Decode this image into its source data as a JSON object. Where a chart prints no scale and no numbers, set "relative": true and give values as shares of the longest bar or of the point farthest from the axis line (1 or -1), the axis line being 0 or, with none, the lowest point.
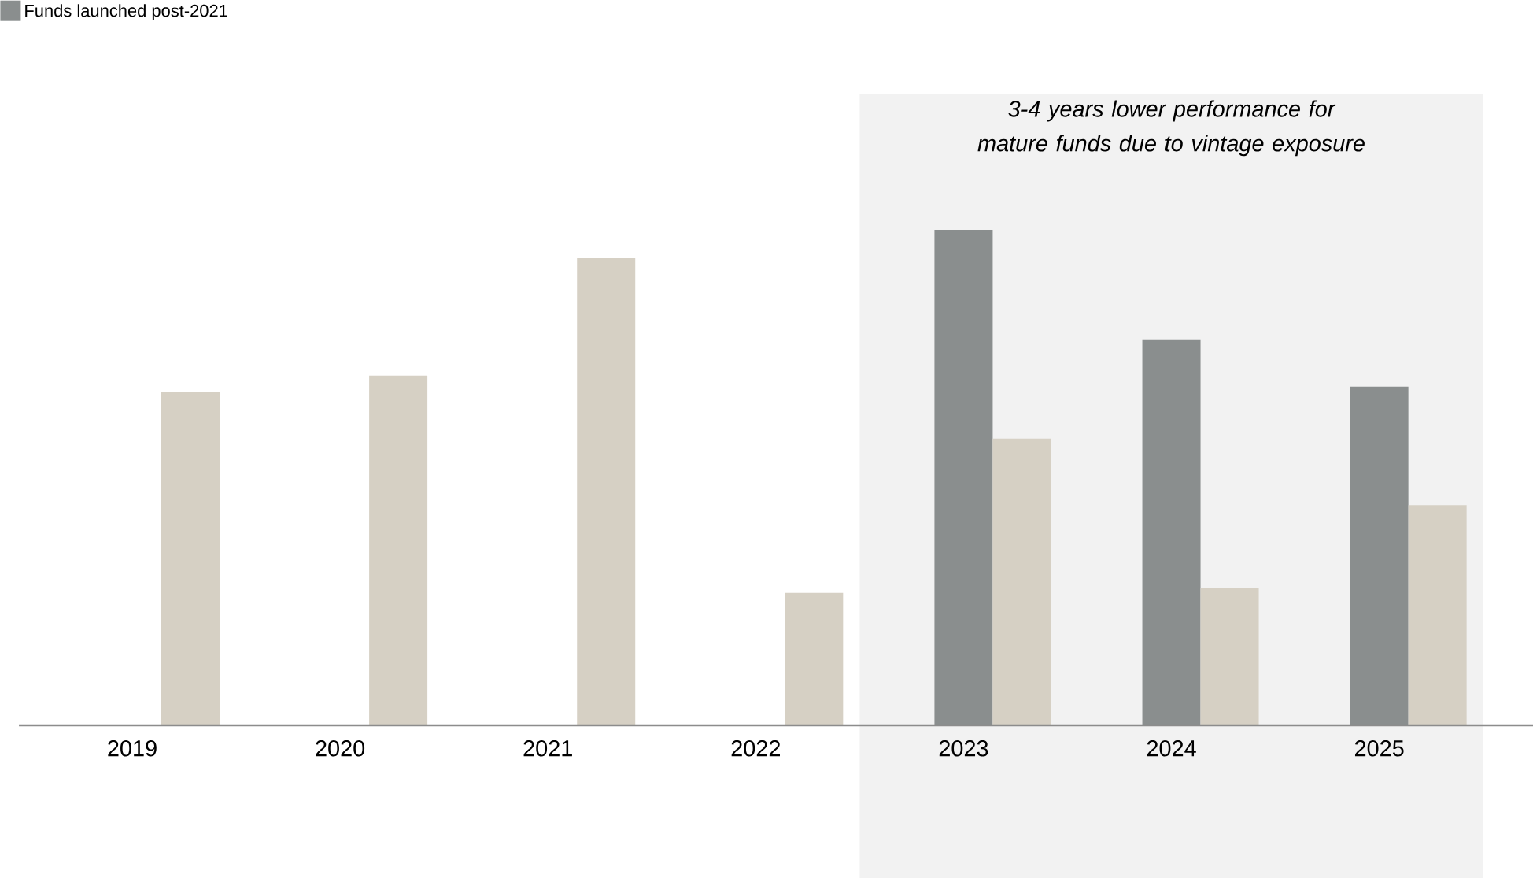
{
  "chart_data": {
    "type": "bar",
    "relative": true,
    "categories": [
      "2019",
      "2020",
      "2021",
      "2022",
      "2023",
      "2024",
      "2025"
    ],
    "series": [
      {
        "name": "Funds launched post-2021",
        "color": "#8a8e8e",
        "values": [
          null,
          null,
          null,
          null,
          1,
          0.778,
          0.683
        ]
      },
      {
        "color": "#d6d0c4",
        "values": [
          0.673,
          0.705,
          0.943,
          0.267,
          0.578,
          0.276,
          0.444
        ]
      }
    ],
    "bands": [
      {
        "axis": "x",
        "from": "2023",
        "to": "2025",
        "label": "3-4 years lower performance for mature funds due to vintage exposure",
        "color": "#f2f2f2"
      }
    ],
    "legend": "top left"
  }
}
